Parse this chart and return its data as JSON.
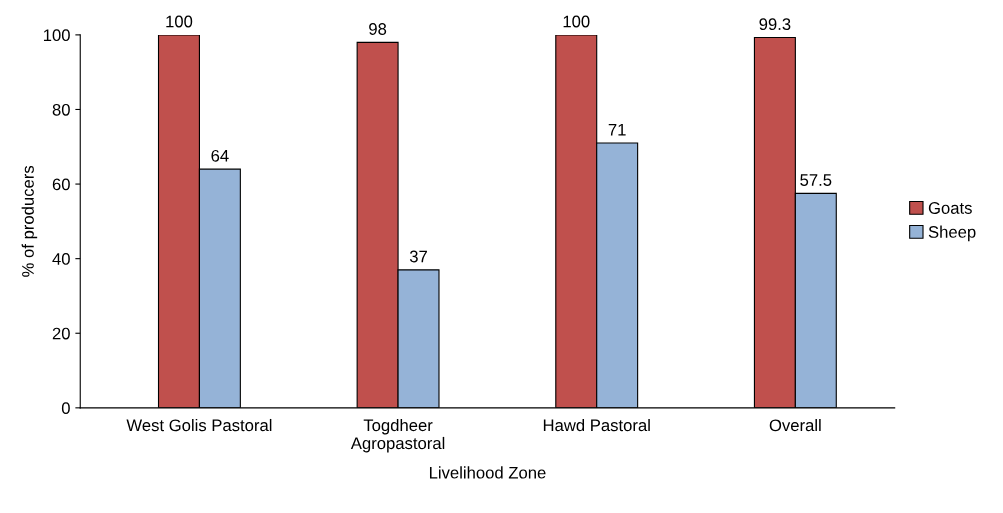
{
  "chart_data": {
    "type": "bar",
    "xlabel": "Livelihood Zone",
    "ylabel": "% of producers",
    "categories": [
      "West Golis Pastoral",
      "Togdheer\nAgropastoral",
      "Hawd Pastoral",
      "Overall"
    ],
    "series": [
      {
        "name": "Goats",
        "color": "#c0504d",
        "values": [
          100,
          98,
          100,
          99.3
        ]
      },
      {
        "name": "Sheep",
        "color": "#95b3d7",
        "values": [
          64,
          37,
          71,
          57.5
        ]
      }
    ],
    "ylim": [
      0,
      100
    ],
    "yticks": [
      0,
      20,
      40,
      60,
      80,
      100
    ],
    "grid": false,
    "legend": "right",
    "data_labels": true
  }
}
